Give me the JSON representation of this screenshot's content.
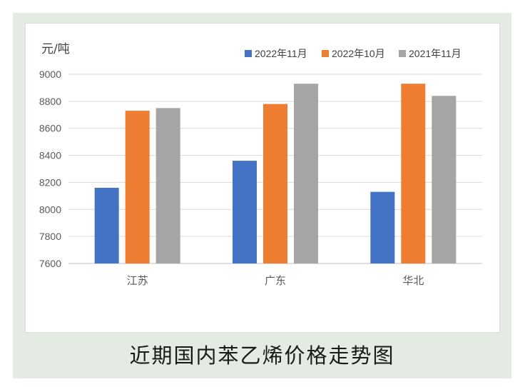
{
  "caption": "近期国内苯乙烯价格走势图",
  "chart_data": {
    "type": "bar",
    "title": "",
    "unit_label": "元/吨",
    "categories": [
      "江苏",
      "广东",
      "华北"
    ],
    "series": [
      {
        "name": "2022年11月",
        "color": "#4472c4",
        "values": [
          8160,
          8360,
          8130
        ]
      },
      {
        "name": "2022年10月",
        "color": "#ed7d31",
        "values": [
          8730,
          8780,
          8930
        ]
      },
      {
        "name": "2021年11月",
        "color": "#a5a5a5",
        "values": [
          8750,
          8930,
          8840
        ]
      }
    ],
    "ylim": [
      7600,
      9000
    ],
    "yticks": [
      7600,
      7800,
      8000,
      8200,
      8400,
      8600,
      8800,
      9000
    ],
    "grid": true,
    "legend_position": "top-right"
  }
}
